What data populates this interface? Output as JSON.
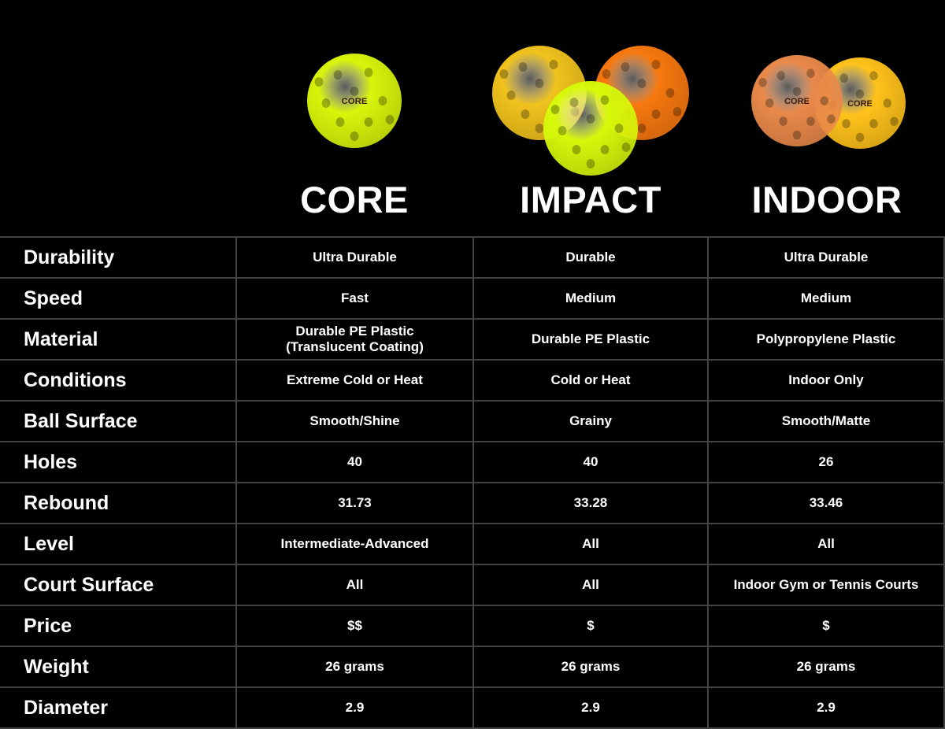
{
  "logo_text": "CORE",
  "products": [
    {
      "name": "CORE",
      "ball_colors": [
        "#d8f50a"
      ]
    },
    {
      "name": "IMPACT",
      "ball_colors": [
        "#f0c21c",
        "#f7780f",
        "#d6f90a"
      ]
    },
    {
      "name": "INDOOR",
      "ball_colors": [
        "#e9894a",
        "#ffc21a"
      ]
    }
  ],
  "rows": [
    {
      "label": "Durability",
      "values": [
        "Ultra Durable",
        "Durable",
        "Ultra Durable"
      ]
    },
    {
      "label": "Speed",
      "values": [
        "Fast",
        "Medium",
        "Medium"
      ]
    },
    {
      "label": "Material",
      "values": [
        "Durable PE Plastic\n(Translucent Coating)",
        "Durable PE Plastic",
        "Polypropylene Plastic"
      ]
    },
    {
      "label": "Conditions",
      "values": [
        "Extreme Cold or Heat",
        "Cold or Heat",
        "Indoor Only"
      ]
    },
    {
      "label": "Ball Surface",
      "values": [
        "Smooth/Shine",
        "Grainy",
        "Smooth/Matte"
      ]
    },
    {
      "label": "Holes",
      "values": [
        "40",
        "40",
        "26"
      ]
    },
    {
      "label": "Rebound",
      "values": [
        "31.73",
        "33.28",
        "33.46"
      ]
    },
    {
      "label": "Level",
      "values": [
        "Intermediate-Advanced",
        "All",
        "All"
      ]
    },
    {
      "label": "Court Surface",
      "values": [
        "All",
        "All",
        "Indoor Gym or Tennis Courts"
      ]
    },
    {
      "label": "Price",
      "values": [
        "$$",
        "$",
        "$"
      ]
    },
    {
      "label": "Weight",
      "values": [
        "26 grams",
        "26 grams",
        "26 grams"
      ]
    },
    {
      "label": "Diameter",
      "values": [
        "2.9",
        "2.9",
        "2.9"
      ]
    }
  ]
}
